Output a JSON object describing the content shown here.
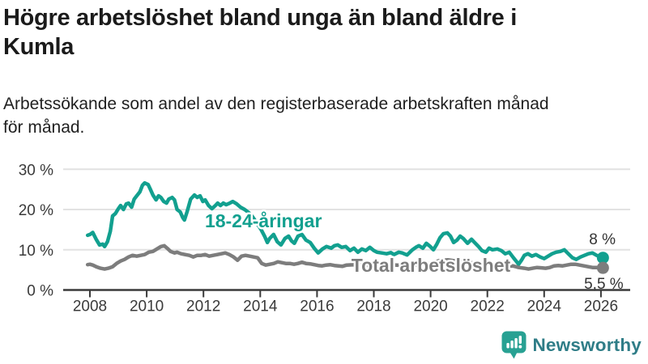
{
  "header": {
    "title": "Högre arbetslöshet bland unga än bland äldre i Kumla",
    "title_lines": [
      "Högre arbetslöshet bland unga än bland äldre i",
      "Kumla"
    ],
    "subtitle": "Arbetssökande som andel av den registerbaserade arbetskraften månad för månad.",
    "subtitle_lines": [
      "Arbetssökande som andel av den registerbaserade arbetskraften månad",
      "för månad."
    ]
  },
  "footer": {
    "brand": "Newsworthy"
  },
  "colors": {
    "youth": "#12a08f",
    "total": "#7d7d7d",
    "axis": "#3a3a3a",
    "grid": "#e2e2e2",
    "annotation_value": "#333333",
    "logo_icon": "#28a193",
    "logo_text": "#2f7d87"
  },
  "chart_data": {
    "type": "line",
    "title": "Högre arbetslöshet bland unga än bland äldre i Kumla",
    "subtitle": "Arbetssökande som andel av den registerbaserade arbetskraften månad för månad.",
    "xlabel": "",
    "ylabel": "",
    "grid": "horizontal",
    "legend_position": "inline-labels",
    "x_axis": {
      "ticks": [
        2008,
        2010,
        2012,
        2014,
        2016,
        2018,
        2020,
        2022,
        2024,
        2026
      ],
      "min": 2007.8,
      "max": 2026.8
    },
    "y_axis": {
      "ticks": [
        0,
        10,
        20,
        30
      ],
      "suffix": " %",
      "min": 0,
      "max": 31.5
    },
    "series": [
      {
        "name": "18-24-åringar",
        "color": "#12a08f",
        "end_label": "8 %",
        "end_value": 8,
        "points": [
          [
            2007.92,
            13.6
          ],
          [
            2008.0,
            13.8
          ],
          [
            2008.1,
            14.3
          ],
          [
            2008.22,
            12.6
          ],
          [
            2008.34,
            11.2
          ],
          [
            2008.45,
            11.4
          ],
          [
            2008.52,
            10.8
          ],
          [
            2008.62,
            12.0
          ],
          [
            2008.72,
            14.6
          ],
          [
            2008.8,
            18.4
          ],
          [
            2008.9,
            19.0
          ],
          [
            2009.0,
            20.2
          ],
          [
            2009.08,
            21.0
          ],
          [
            2009.18,
            20.0
          ],
          [
            2009.28,
            21.4
          ],
          [
            2009.36,
            21.6
          ],
          [
            2009.47,
            20.6
          ],
          [
            2009.56,
            22.6
          ],
          [
            2009.65,
            23.4
          ],
          [
            2009.76,
            24.4
          ],
          [
            2009.85,
            26.0
          ],
          [
            2009.93,
            26.6
          ],
          [
            2010.05,
            26.2
          ],
          [
            2010.13,
            25.0
          ],
          [
            2010.22,
            23.6
          ],
          [
            2010.33,
            22.4
          ],
          [
            2010.42,
            23.4
          ],
          [
            2010.5,
            23.0
          ],
          [
            2010.6,
            22.0
          ],
          [
            2010.7,
            21.6
          ],
          [
            2010.78,
            22.6
          ],
          [
            2010.9,
            23.0
          ],
          [
            2010.98,
            22.4
          ],
          [
            2011.07,
            20.0
          ],
          [
            2011.18,
            19.4
          ],
          [
            2011.27,
            18.0
          ],
          [
            2011.33,
            17.4
          ],
          [
            2011.42,
            19.4
          ],
          [
            2011.55,
            22.6
          ],
          [
            2011.68,
            23.6
          ],
          [
            2011.78,
            23.0
          ],
          [
            2011.88,
            23.4
          ],
          [
            2011.98,
            22.0
          ],
          [
            2012.06,
            22.4
          ],
          [
            2012.18,
            21.0
          ],
          [
            2012.3,
            20.2
          ],
          [
            2012.42,
            21.0
          ],
          [
            2012.5,
            21.6
          ],
          [
            2012.6,
            21.0
          ],
          [
            2012.7,
            21.6
          ],
          [
            2012.8,
            21.2
          ],
          [
            2012.9,
            21.5
          ],
          [
            2013.03,
            22.0
          ],
          [
            2013.17,
            21.4
          ],
          [
            2013.3,
            20.6
          ],
          [
            2013.45,
            20.0
          ],
          [
            2013.6,
            19.2
          ],
          [
            2013.73,
            18.2
          ],
          [
            2013.88,
            16.6
          ],
          [
            2014.03,
            15.0
          ],
          [
            2014.15,
            13.4
          ],
          [
            2014.25,
            11.8
          ],
          [
            2014.33,
            12.8
          ],
          [
            2014.47,
            13.8
          ],
          [
            2014.6,
            12.0
          ],
          [
            2014.73,
            11.2
          ],
          [
            2014.87,
            12.8
          ],
          [
            2015.0,
            13.4
          ],
          [
            2015.1,
            12.2
          ],
          [
            2015.2,
            11.6
          ],
          [
            2015.33,
            13.4
          ],
          [
            2015.47,
            13.8
          ],
          [
            2015.61,
            12.4
          ],
          [
            2015.76,
            11.8
          ],
          [
            2015.9,
            10.4
          ],
          [
            2016.04,
            9.2
          ],
          [
            2016.19,
            10.2
          ],
          [
            2016.33,
            10.8
          ],
          [
            2016.5,
            10.4
          ],
          [
            2016.61,
            11.0
          ],
          [
            2016.73,
            11.2
          ],
          [
            2016.87,
            10.6
          ],
          [
            2017.01,
            10.8
          ],
          [
            2017.16,
            9.8
          ],
          [
            2017.3,
            10.4
          ],
          [
            2017.44,
            9.4
          ],
          [
            2017.58,
            10.2
          ],
          [
            2017.72,
            9.8
          ],
          [
            2017.86,
            10.6
          ],
          [
            2018.0,
            9.8
          ],
          [
            2018.11,
            9.4
          ],
          [
            2018.28,
            9.2
          ],
          [
            2018.45,
            9.0
          ],
          [
            2018.6,
            9.3
          ],
          [
            2018.71,
            8.8
          ],
          [
            2018.88,
            9.4
          ],
          [
            2019.0,
            9.2
          ],
          [
            2019.17,
            8.7
          ],
          [
            2019.36,
            10.0
          ],
          [
            2019.48,
            10.6
          ],
          [
            2019.59,
            11.0
          ],
          [
            2019.73,
            10.4
          ],
          [
            2019.85,
            11.6
          ],
          [
            2019.99,
            10.8
          ],
          [
            2020.1,
            10.0
          ],
          [
            2020.22,
            11.4
          ],
          [
            2020.33,
            13.0
          ],
          [
            2020.45,
            14.0
          ],
          [
            2020.59,
            14.2
          ],
          [
            2020.7,
            13.4
          ],
          [
            2020.81,
            11.8
          ],
          [
            2020.93,
            12.4
          ],
          [
            2021.04,
            13.4
          ],
          [
            2021.15,
            12.8
          ],
          [
            2021.3,
            11.6
          ],
          [
            2021.44,
            12.6
          ],
          [
            2021.55,
            11.8
          ],
          [
            2021.69,
            10.8
          ],
          [
            2021.81,
            9.8
          ],
          [
            2021.95,
            9.4
          ],
          [
            2022.06,
            10.4
          ],
          [
            2022.18,
            10.0
          ],
          [
            2022.35,
            10.2
          ],
          [
            2022.49,
            9.8
          ],
          [
            2022.63,
            9.0
          ],
          [
            2022.77,
            9.4
          ],
          [
            2022.92,
            8.0
          ],
          [
            2023.1,
            6.4
          ],
          [
            2023.2,
            7.4
          ],
          [
            2023.3,
            8.6
          ],
          [
            2023.43,
            9.0
          ],
          [
            2023.57,
            8.4
          ],
          [
            2023.71,
            8.8
          ],
          [
            2023.86,
            8.2
          ],
          [
            2024.0,
            7.8
          ],
          [
            2024.14,
            8.4
          ],
          [
            2024.28,
            9.0
          ],
          [
            2024.42,
            9.4
          ],
          [
            2024.57,
            9.6
          ],
          [
            2024.71,
            10.0
          ],
          [
            2024.85,
            9.0
          ],
          [
            2025.0,
            8.0
          ],
          [
            2025.13,
            7.6
          ],
          [
            2025.28,
            8.2
          ],
          [
            2025.42,
            8.6
          ],
          [
            2025.56,
            9.0
          ],
          [
            2025.7,
            9.2
          ],
          [
            2025.85,
            8.6
          ],
          [
            2026.0,
            8.2
          ],
          [
            2026.07,
            8.0
          ]
        ]
      },
      {
        "name": "Total arbetslöshet",
        "color": "#7d7d7d",
        "end_label": "5,5 %",
        "end_value": 5.5,
        "points": [
          [
            2007.92,
            6.3
          ],
          [
            2008.0,
            6.4
          ],
          [
            2008.1,
            6.2
          ],
          [
            2008.22,
            5.8
          ],
          [
            2008.37,
            5.4
          ],
          [
            2008.52,
            5.2
          ],
          [
            2008.65,
            5.4
          ],
          [
            2008.8,
            5.8
          ],
          [
            2008.94,
            6.6
          ],
          [
            2009.08,
            7.2
          ],
          [
            2009.22,
            7.6
          ],
          [
            2009.36,
            8.2
          ],
          [
            2009.5,
            8.6
          ],
          [
            2009.65,
            8.4
          ],
          [
            2009.79,
            8.6
          ],
          [
            2009.93,
            8.8
          ],
          [
            2010.07,
            9.4
          ],
          [
            2010.22,
            9.6
          ],
          [
            2010.36,
            10.2
          ],
          [
            2010.5,
            10.8
          ],
          [
            2010.62,
            11.0
          ],
          [
            2010.72,
            10.4
          ],
          [
            2010.84,
            9.6
          ],
          [
            2010.98,
            9.2
          ],
          [
            2011.07,
            9.4
          ],
          [
            2011.21,
            9.0
          ],
          [
            2011.35,
            8.8
          ],
          [
            2011.5,
            8.6
          ],
          [
            2011.64,
            8.2
          ],
          [
            2011.78,
            8.6
          ],
          [
            2011.92,
            8.6
          ],
          [
            2012.06,
            8.8
          ],
          [
            2012.2,
            8.4
          ],
          [
            2012.34,
            8.6
          ],
          [
            2012.49,
            8.8
          ],
          [
            2012.63,
            9.0
          ],
          [
            2012.77,
            9.2
          ],
          [
            2012.91,
            8.8
          ],
          [
            2013.06,
            8.2
          ],
          [
            2013.2,
            7.4
          ],
          [
            2013.34,
            8.4
          ],
          [
            2013.48,
            8.6
          ],
          [
            2013.63,
            8.4
          ],
          [
            2013.77,
            8.2
          ],
          [
            2013.91,
            8.0
          ],
          [
            2014.05,
            6.6
          ],
          [
            2014.19,
            6.2
          ],
          [
            2014.34,
            6.4
          ],
          [
            2014.48,
            6.6
          ],
          [
            2014.62,
            7.0
          ],
          [
            2014.76,
            6.8
          ],
          [
            2014.9,
            6.6
          ],
          [
            2015.04,
            6.6
          ],
          [
            2015.19,
            6.4
          ],
          [
            2015.33,
            6.6
          ],
          [
            2015.47,
            6.9
          ],
          [
            2015.61,
            6.6
          ],
          [
            2015.76,
            6.5
          ],
          [
            2015.9,
            6.3
          ],
          [
            2016.04,
            6.1
          ],
          [
            2016.18,
            6.0
          ],
          [
            2016.32,
            6.2
          ],
          [
            2016.46,
            6.3
          ],
          [
            2016.61,
            6.1
          ],
          [
            2016.75,
            6.0
          ],
          [
            2016.9,
            5.9
          ],
          [
            2017.04,
            6.2
          ],
          [
            2017.3,
            6.3
          ],
          [
            2017.6,
            6.2
          ],
          [
            2017.9,
            6.1
          ],
          [
            2018.2,
            6.2
          ],
          [
            2018.5,
            6.3
          ],
          [
            2018.8,
            6.2
          ],
          [
            2019.1,
            6.1
          ],
          [
            2019.4,
            6.2
          ],
          [
            2019.7,
            6.4
          ],
          [
            2020.0,
            6.6
          ],
          [
            2020.3,
            7.3
          ],
          [
            2020.6,
            7.5
          ],
          [
            2020.9,
            7.2
          ],
          [
            2021.2,
            7.0
          ],
          [
            2021.5,
            6.7
          ],
          [
            2021.8,
            6.4
          ],
          [
            2022.1,
            6.2
          ],
          [
            2022.4,
            6.0
          ],
          [
            2022.7,
            5.9
          ],
          [
            2022.9,
            6.0
          ],
          [
            2023.1,
            5.6
          ],
          [
            2023.3,
            5.4
          ],
          [
            2023.45,
            5.2
          ],
          [
            2023.6,
            5.4
          ],
          [
            2023.75,
            5.6
          ],
          [
            2023.9,
            5.5
          ],
          [
            2024.05,
            5.4
          ],
          [
            2024.2,
            5.6
          ],
          [
            2024.35,
            6.0
          ],
          [
            2024.5,
            6.1
          ],
          [
            2024.65,
            6.0
          ],
          [
            2024.8,
            6.2
          ],
          [
            2024.95,
            6.4
          ],
          [
            2025.1,
            6.4
          ],
          [
            2025.25,
            6.2
          ],
          [
            2025.4,
            6.0
          ],
          [
            2025.55,
            5.8
          ],
          [
            2025.7,
            5.6
          ],
          [
            2025.85,
            5.6
          ],
          [
            2026.0,
            5.6
          ],
          [
            2026.07,
            5.5
          ]
        ]
      }
    ],
    "annotations": [
      {
        "name": "youth-series-label",
        "text": "18-24-åringar",
        "year": 2012.05,
        "value": 15.6,
        "color": "#12a08f",
        "bold": true,
        "anchor": "start",
        "halo": true
      },
      {
        "name": "total-series-label",
        "text": "Total arbetslöshet",
        "year": 2017.21,
        "value": 4.5,
        "color": "#7d7d7d",
        "bold": true,
        "anchor": "start",
        "halo": true
      },
      {
        "name": "youth-end-value-label",
        "text": "8 %",
        "year": 2026.05,
        "value": 11.4,
        "color": "#333333",
        "bold": false,
        "anchor": "middle",
        "halo": false
      },
      {
        "name": "total-end-value-label",
        "text": "5,5 %",
        "year": 2026.1,
        "value": 0.3,
        "color": "#333333",
        "bold": false,
        "anchor": "middle",
        "halo": false
      }
    ]
  }
}
